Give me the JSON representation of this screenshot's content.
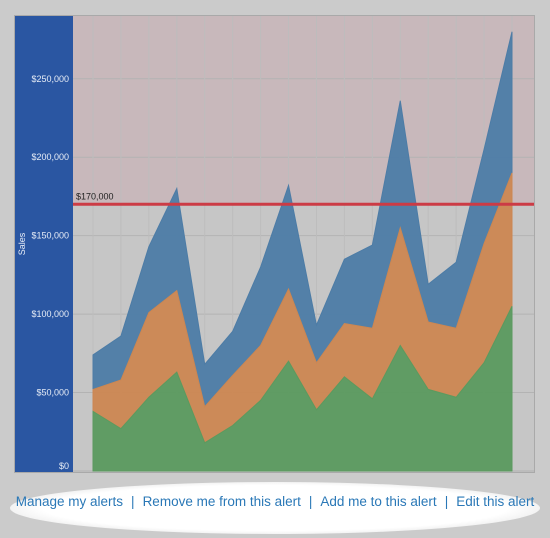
{
  "colors": {
    "axis_panel": "#2a56a2",
    "alert_zone": "#c8b8bb",
    "threshold_line": "#cc3b45",
    "series_blue": "#4d7ca6",
    "series_orange": "#cc8752",
    "series_green": "#5b9a5f"
  },
  "alert": {
    "threshold_label": "$170,000",
    "threshold_value": 170000
  },
  "chart_data": {
    "type": "area",
    "stacked": true,
    "ylabel": "Sales",
    "ylim": [
      0,
      290000
    ],
    "yticks": [
      {
        "value": 0,
        "label": "$0"
      },
      {
        "value": 50000,
        "label": "$50,000"
      },
      {
        "value": 100000,
        "label": "$100,000"
      },
      {
        "value": 150000,
        "label": "$150,000"
      },
      {
        "value": 200000,
        "label": "$200,000"
      },
      {
        "value": 250000,
        "label": "$250,000"
      }
    ],
    "x": [
      1,
      2,
      3,
      4,
      5,
      6,
      7,
      8,
      9,
      10,
      11,
      12,
      13,
      14,
      15,
      16
    ],
    "series": [
      {
        "color": "#5b9a5f",
        "values": [
          38000,
          27000,
          47000,
          63000,
          18000,
          29000,
          45000,
          70000,
          39000,
          60000,
          46000,
          80000,
          52000,
          47000,
          69000,
          105000
        ]
      },
      {
        "color": "#cc8752",
        "values": [
          14000,
          31000,
          54000,
          52000,
          23000,
          32000,
          35000,
          46000,
          30000,
          34000,
          45000,
          75000,
          43000,
          44000,
          76000,
          85000
        ]
      },
      {
        "color": "#4d7ca6",
        "values": [
          22000,
          28000,
          42000,
          65000,
          27000,
          28000,
          50000,
          66000,
          24000,
          41000,
          53000,
          81000,
          24000,
          42000,
          60000,
          90000
        ]
      }
    ],
    "grid": true,
    "reference_line": {
      "value": 170000,
      "label": "$170,000"
    }
  },
  "footer": {
    "links": [
      {
        "label": "Manage my alerts"
      },
      {
        "label": "Remove me from this alert"
      },
      {
        "label": "Add me to this alert"
      },
      {
        "label": "Edit this alert"
      }
    ],
    "separator": "|"
  }
}
